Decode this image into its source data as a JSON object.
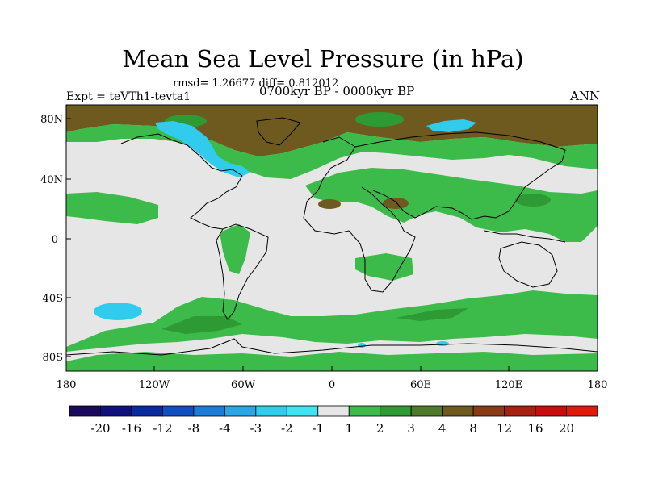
{
  "title": "Mean Sea Level Pressure (in hPa)",
  "stats": "rmsd= 1.26677  diff= 0.812012",
  "experiment": "Expt = teVTh1-tevta1",
  "period": "0700kyr BP - 0000kyr BP",
  "season": "ANN",
  "axes": {
    "lat_ticks": [
      "80N",
      "40N",
      "0",
      "40S",
      "80S"
    ],
    "lon_ticks": [
      "180",
      "120W",
      "60W",
      "0",
      "60E",
      "120E",
      "180"
    ]
  },
  "colorbar": {
    "labels": [
      "-20",
      "-16",
      "-12",
      "-8",
      "-4",
      "-3",
      "-2",
      "-1",
      "1",
      "2",
      "3",
      "4",
      "8",
      "12",
      "16",
      "20"
    ],
    "colors": [
      "#1a0a5c",
      "#10107e",
      "#0a2aa0",
      "#0f4fc0",
      "#1c7cd8",
      "#2aa6e6",
      "#31cbee",
      "#3fe3f2",
      "#e6e6e6",
      "#3cbb4a",
      "#2d9a33",
      "#4f7a2c",
      "#6e5a1f",
      "#8a3a14",
      "#a82010",
      "#c80d0d",
      "#e01a0a"
    ]
  },
  "fill_colors": {
    "background": "#e6e6e6",
    "weak_pos": "#3cbb4a",
    "mid_pos": "#2d9a33",
    "strong_pos": "#6e5a1f",
    "weak_neg": "#3fe3f2",
    "mid_neg": "#31cbee"
  }
}
